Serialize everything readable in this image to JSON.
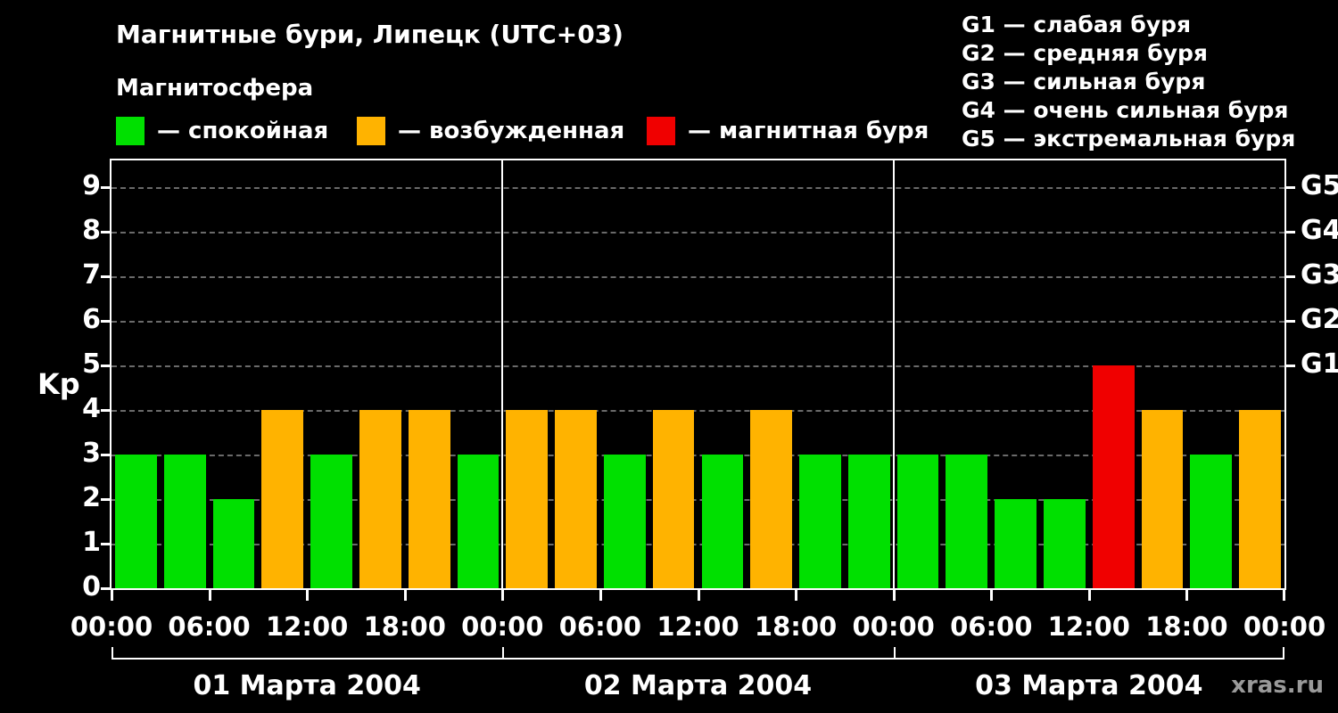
{
  "title": "Магнитные бури, Липецк (UTC+03)",
  "subtitle": "Магнитосфера",
  "legend": [
    {
      "label": "— спокойная",
      "color": "#00e000"
    },
    {
      "label": "— возбужденная",
      "color": "#ffb300"
    },
    {
      "label": "— магнитная буря",
      "color": "#f00000"
    }
  ],
  "storm_scale": [
    "G1 — слабая буря",
    "G2 — средняя буря",
    "G3 — сильная буря",
    "G4 — очень сильная буря",
    "G5 — экстремальная буря"
  ],
  "watermark": "xras.ru",
  "chart_data": {
    "type": "bar",
    "ylabel": "Kp",
    "ylim": [
      0,
      9.6
    ],
    "yticks": [
      0,
      1,
      2,
      3,
      4,
      5,
      6,
      7,
      8,
      9
    ],
    "right_axis_labels": [
      {
        "value": 5,
        "label": "G1"
      },
      {
        "value": 6,
        "label": "G2"
      },
      {
        "value": 7,
        "label": "G3"
      },
      {
        "value": 8,
        "label": "G4"
      },
      {
        "value": 9,
        "label": "G5"
      }
    ],
    "time_tick_labels": [
      "00:00",
      "06:00",
      "12:00",
      "18:00"
    ],
    "end_time_label": "00:00",
    "bar_interval_hours": 3,
    "days": [
      {
        "label": "01 Марта 2004",
        "values": [
          3,
          3,
          2,
          4,
          3,
          4,
          4,
          3
        ]
      },
      {
        "label": "02 Марта 2004",
        "values": [
          4,
          4,
          3,
          4,
          3,
          4,
          3,
          3
        ]
      },
      {
        "label": "03 Марта 2004",
        "values": [
          3,
          3,
          2,
          2,
          5,
          4,
          3,
          4
        ]
      }
    ],
    "colors": {
      "quiet": "#00e000",
      "excited": "#ffb300",
      "storm": "#f00000"
    },
    "color_rule": {
      "quiet_max": 3,
      "excited_value": 4,
      "storm_min": 5
    },
    "grid": "dashed-horizontal",
    "legend_position": "top-left"
  }
}
